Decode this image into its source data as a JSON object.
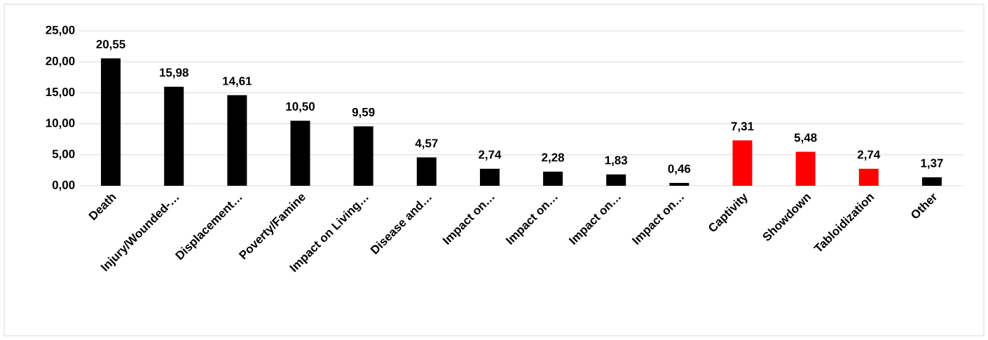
{
  "chart_data": {
    "type": "bar",
    "categories": [
      "Death",
      "Injury/Wounded-…",
      "Displacement…",
      "Poverty/Famine",
      "Impact on Living…",
      "Disease and…",
      "Impact on…",
      "Impact on…",
      "Impact on…",
      "Impact on…",
      "Captivity",
      "Showdown",
      "Tabloidization",
      "Other"
    ],
    "values": [
      20.55,
      15.98,
      14.61,
      10.5,
      9.59,
      4.57,
      2.74,
      2.28,
      1.83,
      0.46,
      7.31,
      5.48,
      2.74,
      1.37
    ],
    "value_labels": [
      "20,55",
      "15,98",
      "14,61",
      "10,50",
      "9,59",
      "4,57",
      "2,74",
      "2,28",
      "1,83",
      "0,46",
      "7,31",
      "5,48",
      "2,74",
      "1,37"
    ],
    "colors": [
      "#000000",
      "#000000",
      "#000000",
      "#000000",
      "#000000",
      "#000000",
      "#000000",
      "#000000",
      "#000000",
      "#000000",
      "#ff0000",
      "#ff0000",
      "#ff0000",
      "#000000"
    ],
    "ylim": [
      0,
      25
    ],
    "yticks": [
      {
        "value": 0,
        "label": "0,00"
      },
      {
        "value": 5,
        "label": "5,00"
      },
      {
        "value": 10,
        "label": "10,00"
      },
      {
        "value": 15,
        "label": "15,00"
      },
      {
        "value": 20,
        "label": "20,00"
      },
      {
        "value": 25,
        "label": "25,00"
      }
    ],
    "grid": "y"
  }
}
